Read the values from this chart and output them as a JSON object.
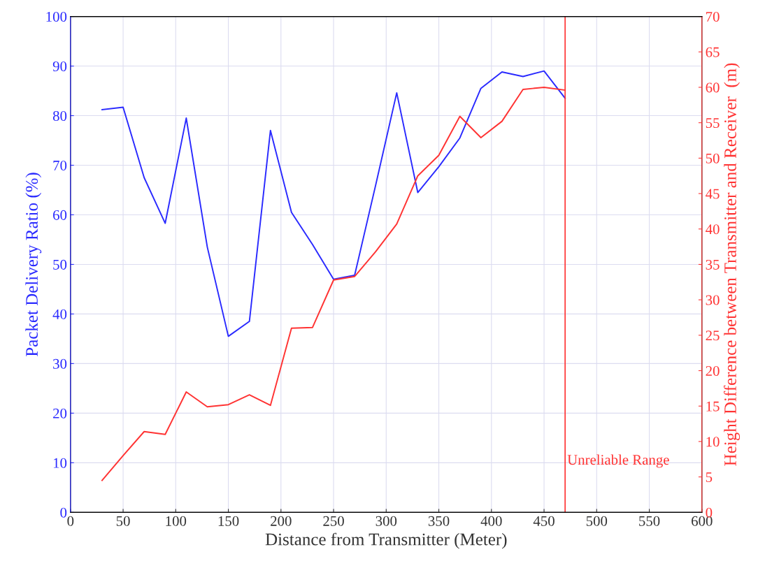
{
  "chart_data": {
    "type": "line",
    "xlabel": "Distance from Transmitter (Meter)",
    "ylabel": "Packet Delivery Ratio (%)",
    "y2label": "Height Difference between Transmitter and Receiver  (m)",
    "x": [
      30,
      50,
      70,
      90,
      110,
      130,
      150,
      170,
      190,
      210,
      230,
      250,
      270,
      290,
      310,
      330,
      350,
      370,
      390,
      410,
      430,
      450,
      470
    ],
    "series": [
      {
        "color": "#2a2aff",
        "values": [
          81.2,
          81.7,
          67.5,
          58.3,
          79.5,
          53.5,
          35.5,
          38.5,
          77,
          60.5,
          54,
          47,
          47.8,
          66,
          84.6,
          64.5,
          69.7,
          75.5,
          85.5,
          88.8,
          87.9,
          89,
          83.5
        ]
      },
      {
        "color": "#ff3333",
        "axis": "y2",
        "values": [
          4.5,
          8,
          11.4,
          11,
          17,
          14.9,
          15.2,
          16.6,
          15.1,
          26,
          26.1,
          32.8,
          33.3,
          36.8,
          40.7,
          47.5,
          50.4,
          55.9,
          52.9,
          55.2,
          59.7,
          60,
          59.6
        ]
      }
    ],
    "xlim": [
      0,
      600
    ],
    "xticks": [
      0,
      50,
      100,
      150,
      200,
      250,
      300,
      350,
      400,
      450,
      500,
      550,
      600
    ],
    "ylim": [
      0,
      100
    ],
    "yticks": [
      0,
      10,
      20,
      30,
      40,
      50,
      60,
      70,
      80,
      90,
      100
    ],
    "y2lim": [
      0,
      70
    ],
    "y2ticks": [
      0,
      5,
      10,
      15,
      20,
      25,
      30,
      35,
      40,
      45,
      50,
      55,
      60,
      65,
      70
    ],
    "ref_lines": [
      {
        "axis": "x",
        "value": 470,
        "label": "Unreliable Range",
        "color": "#ff3333"
      }
    ],
    "grid": true,
    "marker": "none",
    "line_style": "solid"
  }
}
